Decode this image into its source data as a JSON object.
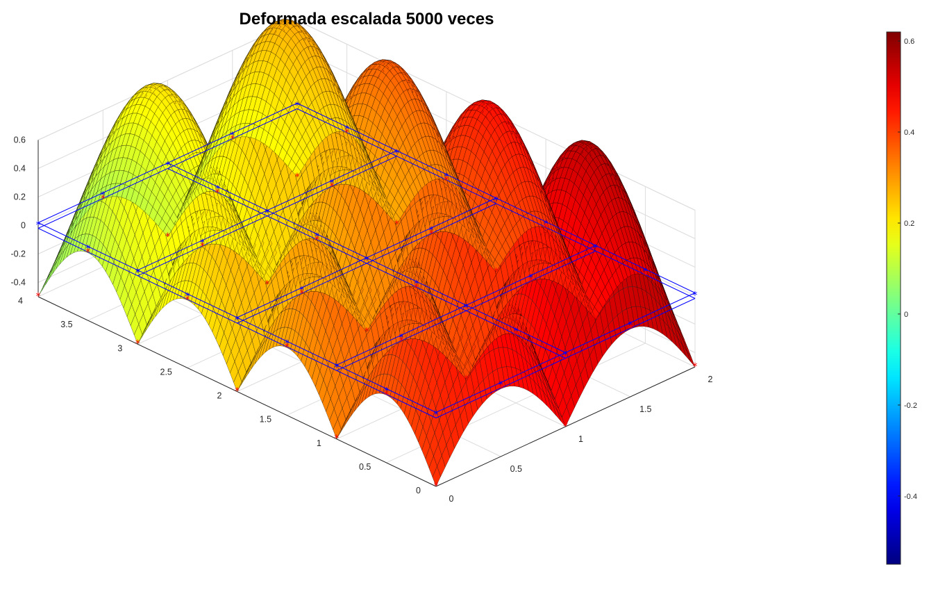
{
  "chart_data": {
    "type": "surface",
    "title": "Deformada escalada 5000 veces",
    "xlabel": "",
    "ylabel": "",
    "zlabel": "",
    "xlim": [
      0,
      2
    ],
    "ylim": [
      0,
      4
    ],
    "zlim": [
      -0.5,
      0.6
    ],
    "x_ticks": [
      "0",
      "0.5",
      "1",
      "1.5",
      "2"
    ],
    "y_ticks": [
      "0",
      "0.5",
      "1",
      "1.5",
      "2",
      "2.5",
      "3",
      "3.5",
      "4"
    ],
    "z_ticks": [
      "-0.4",
      "-0.2",
      "0",
      "0.2",
      "0.4",
      "0.6"
    ],
    "colormap": "jet",
    "grid": true,
    "panels": {
      "x_divisions": 2,
      "y_divisions": 4
    },
    "colorbar": {
      "location": "right",
      "limits": [
        -0.55,
        0.62
      ],
      "ticks": [
        "-0.4",
        "-0.2",
        "0",
        "0.2",
        "0.4",
        "0.6"
      ]
    },
    "markers": {
      "nodes": {
        "symbol": "*",
        "color": "#ff0000"
      },
      "undeformed_nodes": {
        "symbol": "*",
        "color": "#0000ff"
      }
    }
  }
}
